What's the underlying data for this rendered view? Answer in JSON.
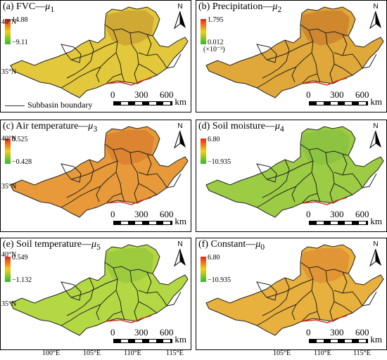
{
  "panels": [
    {
      "title": "(a) FVC—",
      "mu": "μ",
      "sub": "1",
      "max": "14.88",
      "min": "−9.11",
      "unit": "",
      "colors": {
        "main": "#e2c83a",
        "region": "#c99a32"
      }
    },
    {
      "title": "(b) Precipitation—",
      "mu": "μ",
      "sub": "2",
      "max": "1.795",
      "min": "0.012",
      "unit": "(×10⁻³)",
      "colors": {
        "main": "#e0a83a",
        "region": "#c87a2a"
      }
    },
    {
      "title": "(c) Air temperature—",
      "mu": "μ",
      "sub": "3",
      "max": "0.525",
      "min": "−0.428",
      "unit": "",
      "colors": {
        "main": "#e89a3a",
        "region": "#d97a2c"
      }
    },
    {
      "title": "(d) Soil moisture—",
      "mu": "μ",
      "sub": "4",
      "max": "6.80",
      "min": "−10.935",
      "unit": "",
      "colors": {
        "main": "#9ccc44",
        "region": "#86c040"
      }
    },
    {
      "title": "(e) Soil temperature—",
      "mu": "μ",
      "sub": "5",
      "max": "0.549",
      "min": "−1.132",
      "unit": "",
      "colors": {
        "main": "#b4d844",
        "region": "#92c83c"
      }
    },
    {
      "title": "(f) Constant—",
      "mu": "μ",
      "sub": "0",
      "max": "6.80",
      "min": "−10.935",
      "unit": "",
      "colors": {
        "main": "#e8b03c",
        "region": "#e08a30"
      }
    }
  ],
  "north_label": "N",
  "scale": {
    "ticks": [
      "0",
      "300",
      "600"
    ],
    "unit": "km"
  },
  "subbasin_label": "Subbasin boundary",
  "lat_labels": [
    "40°N",
    "35°N"
  ],
  "lon_labels": [
    "100°E",
    "105°E",
    "110°E",
    "115°E"
  ],
  "legend_gradient": {
    "top": "#e0281c",
    "mid": "#f0d020",
    "bottom": "#30b830"
  }
}
